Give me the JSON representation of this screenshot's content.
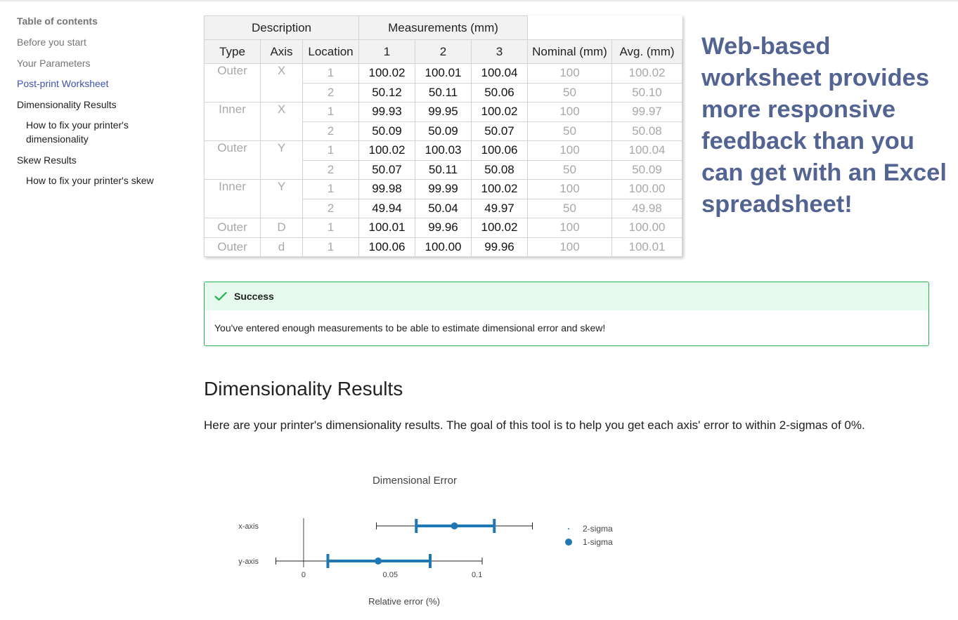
{
  "toc": {
    "title": "Table of contents",
    "items": [
      {
        "label": "Before you start",
        "state": "muted"
      },
      {
        "label": "Your Parameters",
        "state": "muted"
      },
      {
        "label": "Post-print Worksheet",
        "state": "active"
      },
      {
        "label": "Dimensionality Results",
        "state": "dark"
      },
      {
        "label": "How to fix your printer's dimensionality",
        "state": "dark"
      },
      {
        "label": "Skew Results",
        "state": "dark"
      },
      {
        "label": "How to fix your printer's skew",
        "state": "dark"
      }
    ]
  },
  "worksheet": {
    "group_headers": {
      "description": "Description",
      "measurements": "Measurements (mm)"
    },
    "columns": {
      "type": "Type",
      "axis": "Axis",
      "location": "Location",
      "m1": "1",
      "m2": "2",
      "m3": "3",
      "nominal": "Nominal (mm)",
      "avg": "Avg. (mm)"
    },
    "rows": [
      {
        "type": "Outer",
        "axis": "X",
        "location": "1",
        "m1": "100.02",
        "m2": "100.01",
        "m3": "100.04",
        "nominal": "100",
        "avg": "100.02"
      },
      {
        "type": "",
        "axis": "",
        "location": "2",
        "m1": "50.12",
        "m2": "50.11",
        "m3": "50.06",
        "nominal": "50",
        "avg": "50.10"
      },
      {
        "type": "Inner",
        "axis": "X",
        "location": "1",
        "m1": "99.93",
        "m2": "99.95",
        "m3": "100.02",
        "nominal": "100",
        "avg": "99.97"
      },
      {
        "type": "",
        "axis": "",
        "location": "2",
        "m1": "50.09",
        "m2": "50.09",
        "m3": "50.07",
        "nominal": "50",
        "avg": "50.08"
      },
      {
        "type": "Outer",
        "axis": "Y",
        "location": "1",
        "m1": "100.02",
        "m2": "100.03",
        "m3": "100.06",
        "nominal": "100",
        "avg": "100.04"
      },
      {
        "type": "",
        "axis": "",
        "location": "2",
        "m1": "50.07",
        "m2": "50.11",
        "m3": "50.08",
        "nominal": "50",
        "avg": "50.09"
      },
      {
        "type": "Inner",
        "axis": "Y",
        "location": "1",
        "m1": "99.98",
        "m2": "99.99",
        "m3": "100.02",
        "nominal": "100",
        "avg": "100.00"
      },
      {
        "type": "",
        "axis": "",
        "location": "2",
        "m1": "49.94",
        "m2": "50.04",
        "m3": "49.97",
        "nominal": "50",
        "avg": "49.98"
      },
      {
        "type": "Outer",
        "axis": "D",
        "location": "1",
        "m1": "100.01",
        "m2": "99.96",
        "m3": "100.02",
        "nominal": "100",
        "avg": "100.00"
      },
      {
        "type": "Outer",
        "axis": "d",
        "location": "1",
        "m1": "100.06",
        "m2": "100.00",
        "m3": "99.96",
        "nominal": "100",
        "avg": "100.01"
      }
    ]
  },
  "annotation": "Web-based worksheet provides more responsive feedback than you can get with an Excel spreadsheet!",
  "alert": {
    "title": "Success",
    "message": "You've entered enough measurements to be able to estimate dimensional error and skew!",
    "color": "#22b14c"
  },
  "section": {
    "heading": "Dimensionality Results",
    "intro": "Here are your printer's dimensionality results. The goal of this tool is to help you get each axis' error to within 2-sigmas of 0%."
  },
  "colors": {
    "accent": "#3f51b5",
    "annotation": "#536493",
    "series": "#1f77b4"
  },
  "chart_data": {
    "type": "scatter",
    "title": "Dimensional Error",
    "xlabel": "Relative error (%)",
    "ylabel": "",
    "xlim": [
      -0.017,
      0.133
    ],
    "xticks": [
      {
        "value": 0,
        "label": "0"
      },
      {
        "value": 0.05,
        "label": "0.05"
      },
      {
        "value": 0.1,
        "label": "0.1"
      }
    ],
    "categories": [
      "x-axis",
      "y-axis"
    ],
    "series": [
      {
        "name": "2-sigma",
        "points": [
          {
            "category": "x-axis",
            "low": 0.042,
            "high": 0.132
          },
          {
            "category": "y-axis",
            "low": -0.016,
            "high": 0.103
          }
        ]
      },
      {
        "name": "1-sigma",
        "points": [
          {
            "category": "x-axis",
            "center": 0.087,
            "low": 0.065,
            "high": 0.11
          },
          {
            "category": "y-axis",
            "center": 0.043,
            "low": 0.014,
            "high": 0.073
          }
        ]
      }
    ],
    "legend_position": "right",
    "grid": false
  }
}
